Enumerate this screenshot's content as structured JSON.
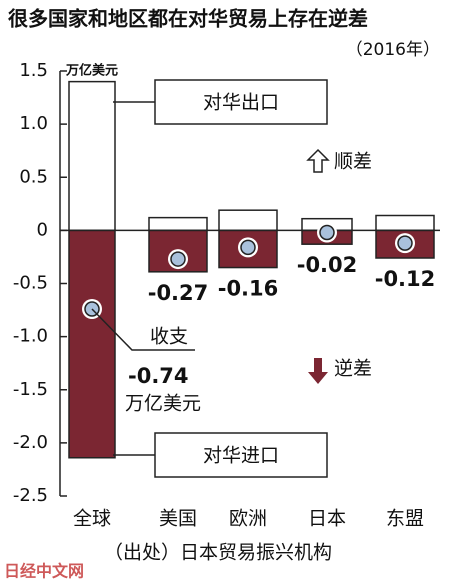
{
  "chart_data": {
    "type": "bar",
    "title": "很多国家和地区都在对华贸易上存在逆差",
    "subtitle": "（2016年）",
    "unit": "万亿美元",
    "categories": [
      "全球",
      "美国",
      "欧洲",
      "日本",
      "东盟"
    ],
    "series": [
      {
        "name": "对华出口",
        "color": "#ffffff",
        "values": [
          1.4,
          0.12,
          0.19,
          0.11,
          0.14
        ]
      },
      {
        "name": "对华进口",
        "color": "#7b2632",
        "values": [
          -2.14,
          -0.39,
          -0.35,
          -0.13,
          -0.26
        ]
      },
      {
        "name": "收支",
        "color": "#a9c1dc",
        "values": [
          -0.74,
          -0.27,
          -0.16,
          -0.02,
          -0.12
        ]
      }
    ],
    "ylim": [
      -2.5,
      1.5
    ],
    "yticks": [
      1.5,
      {
        "value": 1,
        "label": "1.0"
      },
      0.5,
      0,
      -0.5,
      {
        "value": -1,
        "label": "-1.0"
      },
      -1.5,
      {
        "value": -2,
        "label": "-2.0"
      },
      -2.5
    ],
    "surplus_label": "顺差",
    "deficit_label": "逆差",
    "source": "（出处）日本贸易振兴机构",
    "watermark": "日经中文网"
  }
}
